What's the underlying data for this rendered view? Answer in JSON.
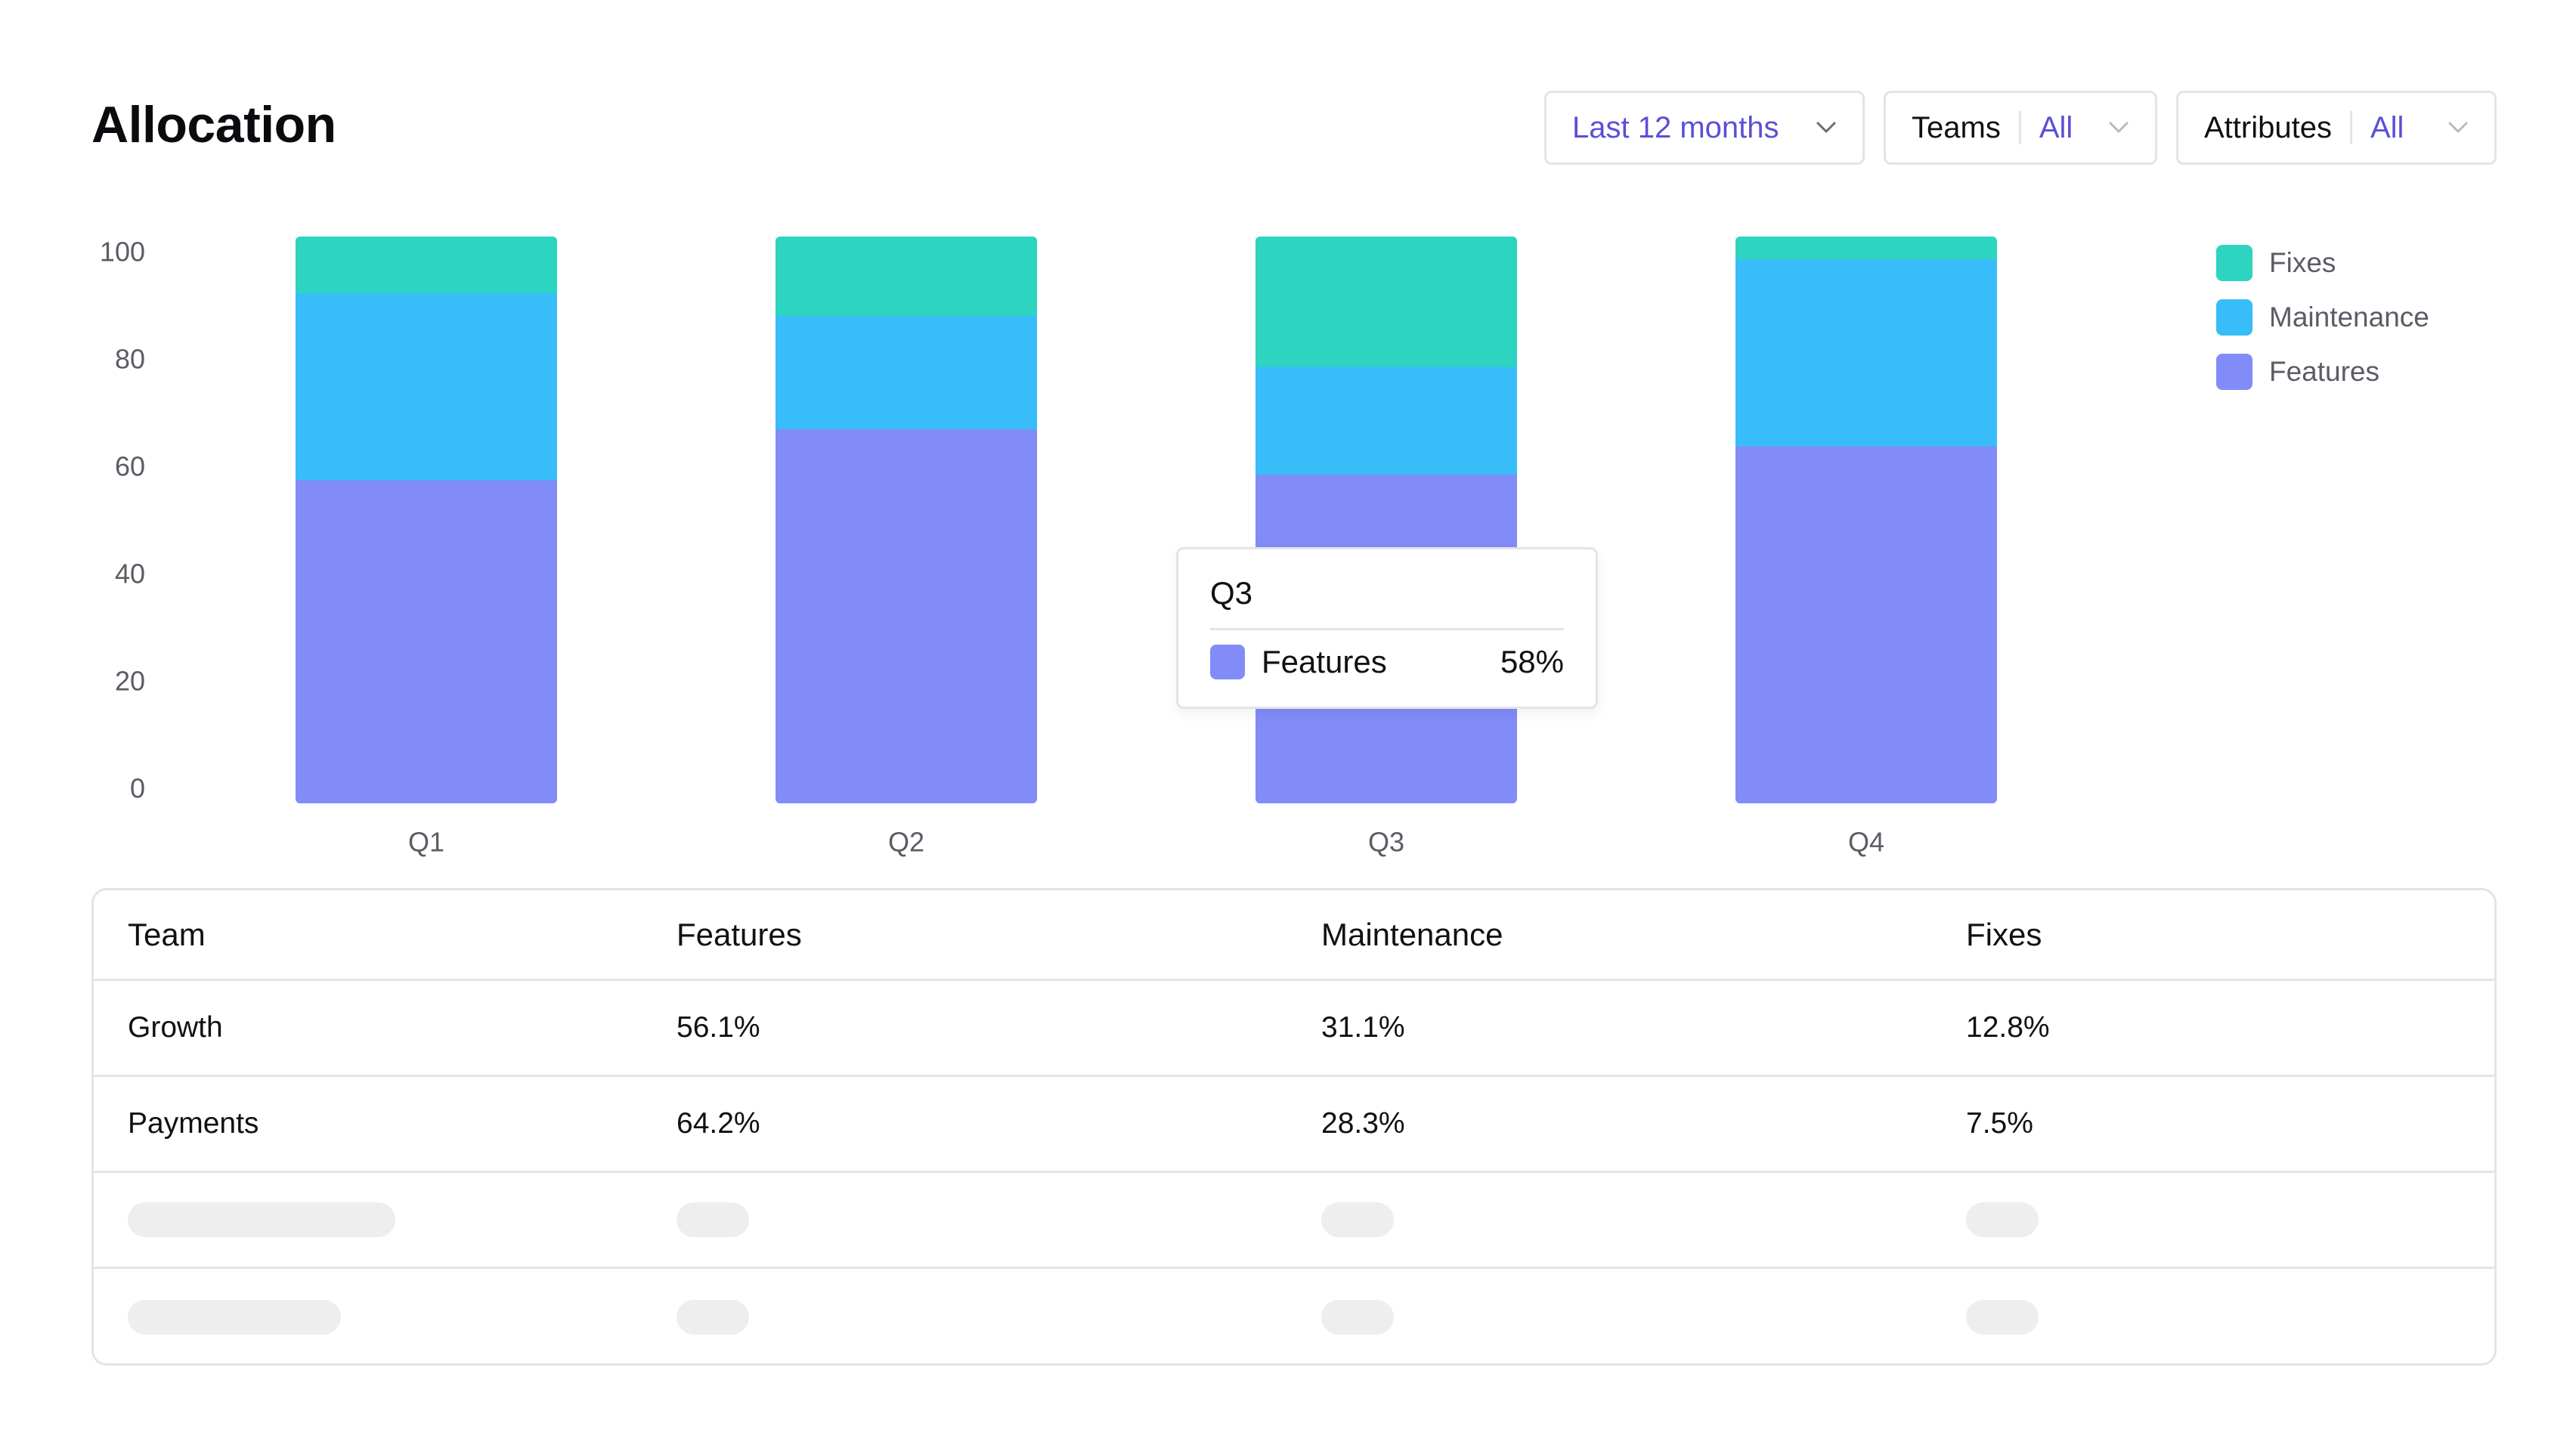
{
  "page": {
    "title": "Allocation"
  },
  "filters": {
    "range": {
      "value": "Last 12 months"
    },
    "teams": {
      "label": "Teams",
      "value": "All"
    },
    "attributes": {
      "label": "Attributes",
      "value": "All"
    }
  },
  "colors": {
    "Fixes": "#2dd4bf",
    "Maintenance": "#38bdf8",
    "Features": "#818cf8",
    "accent": "#5b4fd8"
  },
  "chart_data": {
    "type": "bar",
    "stacked": true,
    "categories": [
      "Q1",
      "Q2",
      "Q3",
      "Q4"
    ],
    "series": [
      {
        "name": "Features",
        "values": [
          57,
          66,
          58,
          63
        ]
      },
      {
        "name": "Maintenance",
        "values": [
          33,
          20,
          19,
          33
        ]
      },
      {
        "name": "Fixes",
        "values": [
          14,
          18,
          29,
          10
        ]
      }
    ],
    "ylim": [
      0,
      100
    ],
    "yticks": [
      0,
      20,
      40,
      60,
      80,
      100
    ],
    "legend": [
      "Fixes",
      "Maintenance",
      "Features"
    ],
    "legend_position": "right",
    "grid": false
  },
  "tooltip": {
    "title": "Q3",
    "series": "Features",
    "value": "58%"
  },
  "table": {
    "headers": [
      "Team",
      "Features",
      "Maintenance",
      "Fixes"
    ],
    "rows": [
      [
        "Growth",
        "56.1%",
        "31.1%",
        "12.8%"
      ],
      [
        "Payments",
        "64.2%",
        "28.3%",
        "7.5%"
      ]
    ],
    "loading_rows": 2
  }
}
